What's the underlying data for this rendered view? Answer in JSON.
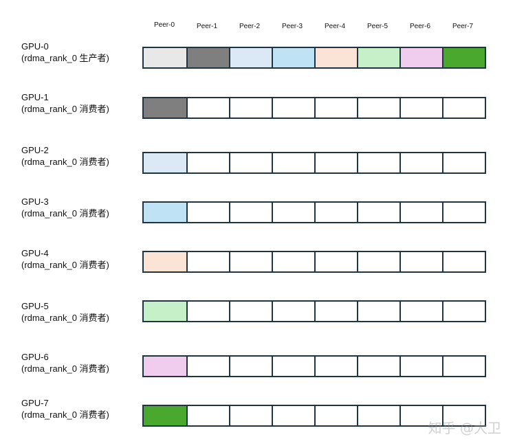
{
  "peers": [
    "Peer-0",
    "Peer-1",
    "Peer-2",
    "Peer-3",
    "Peer-4",
    "Peer-5",
    "Peer-6",
    "Peer-7"
  ],
  "palette": {
    "empty": "#ffffff",
    "border": "#1f3442",
    "peer_colors": [
      "#e8e8e8",
      "#7f7f7f",
      "#dbe8f6",
      "#bfe3f5",
      "#fbe3d5",
      "#c5f0c8",
      "#f0cdee",
      "#4aa82e"
    ]
  },
  "rows": [
    {
      "gpu": "GPU-0",
      "role": "(rdma_rank_0 生产者)",
      "cells": [
        0,
        1,
        2,
        3,
        4,
        5,
        6,
        7
      ]
    },
    {
      "gpu": "GPU-1",
      "role": "(rdma_rank_0 消费者)",
      "cells": [
        1,
        null,
        null,
        null,
        null,
        null,
        null,
        null
      ]
    },
    {
      "gpu": "GPU-2",
      "role": "(rdma_rank_0 消费者)",
      "cells": [
        2,
        null,
        null,
        null,
        null,
        null,
        null,
        null
      ]
    },
    {
      "gpu": "GPU-3",
      "role": "(rdma_rank_0 消费者)",
      "cells": [
        3,
        null,
        null,
        null,
        null,
        null,
        null,
        null
      ]
    },
    {
      "gpu": "GPU-4",
      "role": "(rdma_rank_0 消费者)",
      "cells": [
        4,
        null,
        null,
        null,
        null,
        null,
        null,
        null
      ]
    },
    {
      "gpu": "GPU-5",
      "role": "(rdma_rank_0 消费者)",
      "cells": [
        5,
        null,
        null,
        null,
        null,
        null,
        null,
        null
      ]
    },
    {
      "gpu": "GPU-6",
      "role": "(rdma_rank_0 消费者)",
      "cells": [
        6,
        null,
        null,
        null,
        null,
        null,
        null,
        null
      ]
    },
    {
      "gpu": "GPU-7",
      "role": "(rdma_rank_0 消费者)",
      "cells": [
        7,
        null,
        null,
        null,
        null,
        null,
        null,
        null
      ]
    }
  ],
  "watermark": "知乎 @大卫"
}
